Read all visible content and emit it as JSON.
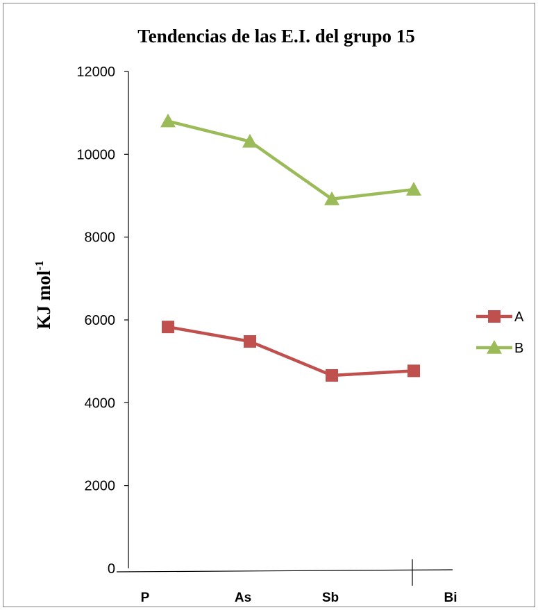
{
  "chart_data": {
    "type": "line",
    "title": "Tendencias de las E.I. del grupo 15",
    "ylabel": "KJ mol",
    "ylabel_superscript": "-1",
    "xlabel": "",
    "categories": [
      "P",
      "As",
      "Sb",
      "Bi"
    ],
    "ylim": [
      0,
      12000
    ],
    "yticks": [
      0,
      2000,
      4000,
      6000,
      8000,
      10000,
      12000
    ],
    "legend_position": "right",
    "series": [
      {
        "name": "A",
        "values": [
          5830,
          5480,
          4660,
          4770
        ],
        "color": "#c0504d",
        "marker": "square"
      },
      {
        "name": "B",
        "values": [
          10800,
          10310,
          8920,
          9150
        ],
        "color": "#9bbb59",
        "marker": "triangle"
      }
    ]
  }
}
